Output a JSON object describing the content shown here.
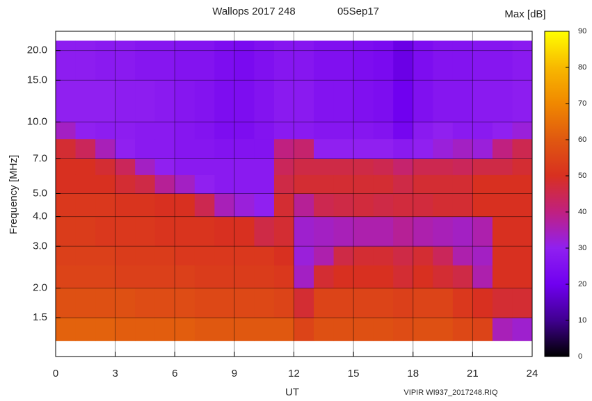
{
  "chart_data": {
    "type": "heatmap",
    "title": "Wallops 2017 248",
    "date": "05Sep17",
    "xlabel": "UT",
    "ylabel": "Frequency [MHz]",
    "footer": "VIPIR  WI937_2017248.RIQ",
    "xlim": [
      0,
      24
    ],
    "xticks": [
      0,
      3,
      6,
      9,
      12,
      15,
      18,
      21,
      24
    ],
    "ylim": [
      1.03,
      24.1
    ],
    "log_y": true,
    "yticks": [
      {
        "value": 1.5,
        "label": "1.5"
      },
      {
        "value": 2,
        "label": "2.0"
      },
      {
        "value": 3,
        "label": "3.0"
      },
      {
        "value": 4,
        "label": "4.0"
      },
      {
        "value": 5,
        "label": "5.0"
      },
      {
        "value": 7,
        "label": "7.0"
      },
      {
        "value": 10,
        "label": "10.0"
      },
      {
        "value": 15,
        "label": "15.0"
      },
      {
        "value": 20,
        "label": "20.0"
      }
    ],
    "grid": true,
    "x_bins": [
      0,
      1,
      2,
      3,
      4,
      5,
      6,
      7,
      8,
      9,
      10,
      11,
      12,
      13,
      14,
      15,
      16,
      17,
      18,
      19,
      20,
      21,
      22,
      23,
      24
    ],
    "y_bins": [
      1.2,
      1.5,
      2.0,
      2.5,
      3.0,
      4.0,
      5.0,
      6.0,
      7.0,
      8.5,
      10,
      15,
      22
    ],
    "values": [
      [
        62,
        62,
        62,
        61,
        61,
        61,
        61,
        60,
        60,
        60,
        60,
        60,
        55,
        58,
        58,
        58,
        58,
        57,
        58,
        58,
        56,
        55,
        35,
        33
      ],
      [
        58,
        58,
        58,
        58,
        57,
        57,
        57,
        56,
        56,
        56,
        56,
        55,
        48,
        55,
        55,
        55,
        55,
        54,
        55,
        55,
        52,
        50,
        48,
        48
      ],
      [
        55,
        55,
        55,
        54,
        54,
        54,
        54,
        53,
        53,
        53,
        53,
        52,
        34,
        48,
        50,
        50,
        50,
        48,
        50,
        48,
        46,
        36,
        50,
        50
      ],
      [
        54,
        54,
        54,
        53,
        53,
        53,
        52,
        52,
        52,
        52,
        52,
        50,
        32,
        36,
        46,
        48,
        48,
        46,
        48,
        44,
        36,
        34,
        50,
        50
      ],
      [
        53,
        53,
        52,
        52,
        52,
        51,
        51,
        51,
        50,
        50,
        46,
        48,
        33,
        34,
        35,
        36,
        36,
        38,
        36,
        35,
        34,
        36,
        50,
        50
      ],
      [
        52,
        52,
        52,
        51,
        51,
        50,
        50,
        45,
        35,
        32,
        30,
        48,
        38,
        45,
        46,
        47,
        46,
        47,
        47,
        48,
        48,
        50,
        50,
        50
      ],
      [
        50,
        50,
        50,
        48,
        46,
        38,
        34,
        30,
        28,
        28,
        28,
        46,
        48,
        48,
        48,
        48,
        48,
        46,
        48,
        48,
        48,
        50,
        50,
        50
      ],
      [
        50,
        50,
        48,
        44,
        34,
        30,
        28,
        28,
        28,
        28,
        28,
        44,
        46,
        46,
        46,
        46,
        45,
        42,
        45,
        45,
        44,
        46,
        46,
        48
      ],
      [
        48,
        44,
        35,
        30,
        28,
        28,
        27,
        27,
        26,
        26,
        26,
        40,
        42,
        30,
        30,
        30,
        30,
        28,
        30,
        32,
        34,
        32,
        40,
        45
      ],
      [
        34,
        30,
        29,
        29,
        28,
        28,
        27,
        26,
        24,
        24,
        26,
        28,
        28,
        27,
        27,
        27,
        26,
        22,
        28,
        30,
        28,
        28,
        30,
        32
      ],
      [
        30,
        30,
        30,
        29,
        29,
        28,
        27,
        26,
        24,
        24,
        26,
        28,
        28,
        26,
        26,
        25,
        24,
        20,
        25,
        27,
        27,
        28,
        28,
        29
      ],
      [
        29,
        29,
        28,
        28,
        27,
        27,
        26,
        26,
        24,
        23,
        25,
        27,
        27,
        25,
        25,
        24,
        23,
        19,
        24,
        26,
        26,
        27,
        27,
        28
      ]
    ],
    "colorbar": {
      "label": "Max [dB]",
      "lim": [
        0,
        90
      ],
      "ticks": [
        0,
        10,
        20,
        30,
        40,
        50,
        60,
        70,
        80,
        90
      ]
    },
    "colorscale": [
      "#000000",
      "#400090",
      "#7000f0",
      "#9020f0",
      "#c02080",
      "#d83020",
      "#e05810",
      "#f08800",
      "#f8b800",
      "#ffff00"
    ]
  }
}
